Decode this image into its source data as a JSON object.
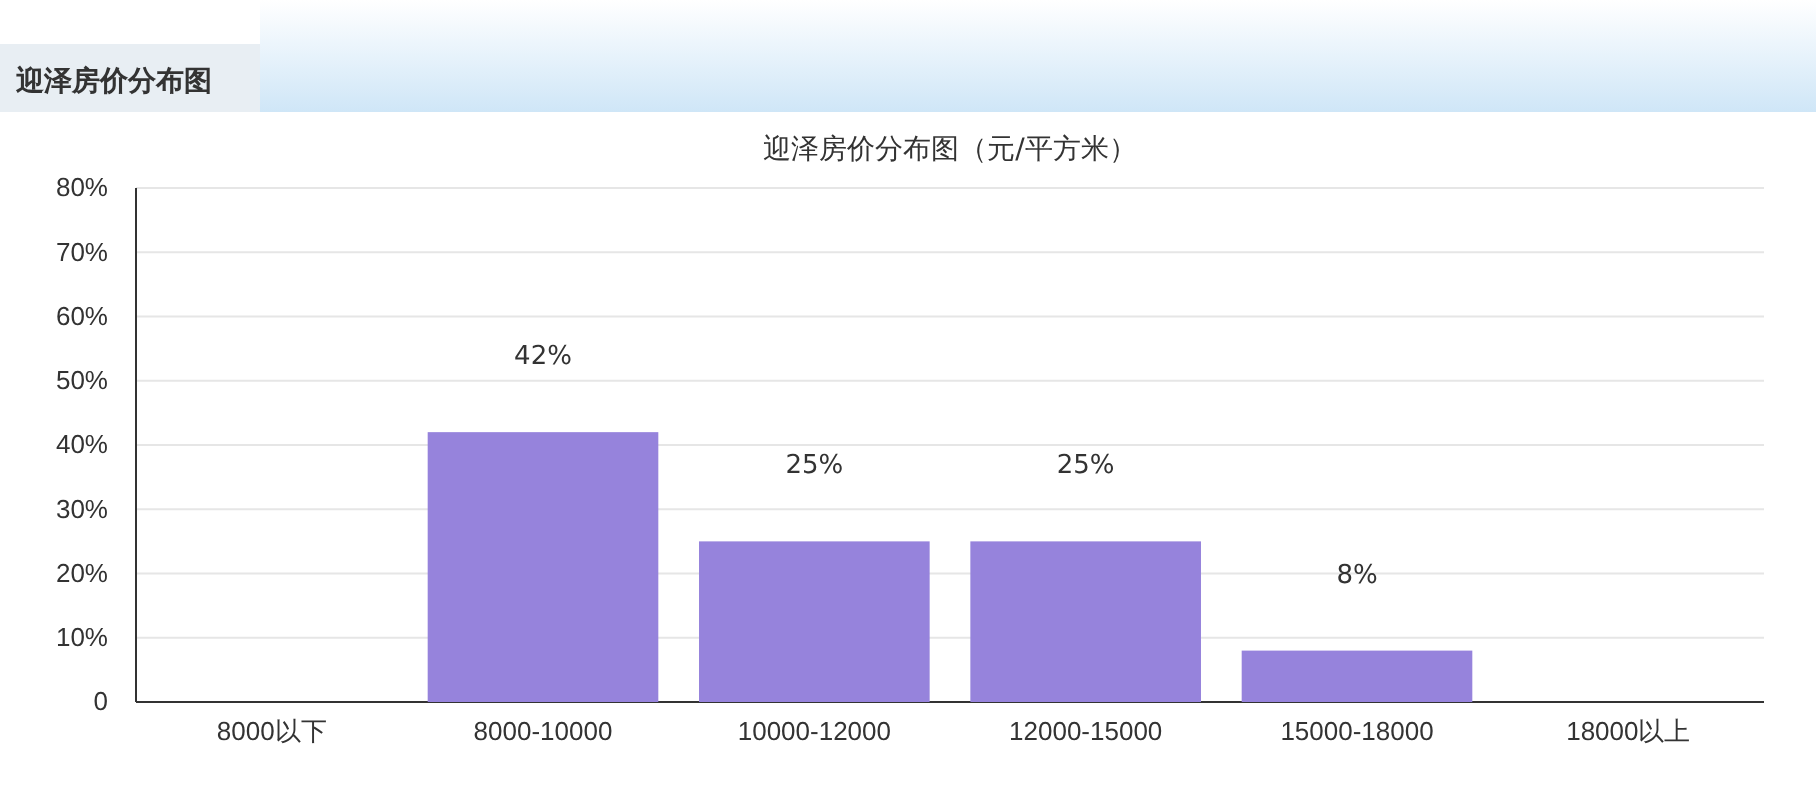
{
  "chart_data": {
    "type": "bar",
    "title": "迎泽房价分布图",
    "subtitle": "迎泽房价分布图（元/平方米）",
    "categories": [
      "8000以下",
      "8000-10000",
      "10000-12000",
      "12000-15000",
      "15000-18000",
      "18000以上"
    ],
    "values": [
      0,
      42,
      25,
      25,
      8,
      0
    ],
    "value_labels": [
      null,
      "42%",
      "25%",
      "25%",
      "8%",
      null
    ],
    "color": "#9683dc",
    "ylim": [
      0,
      80
    ],
    "yticks": [
      0,
      {
        "value": 10,
        "label": "10%"
      },
      {
        "value": 20,
        "label": "20%"
      },
      {
        "value": 30,
        "label": "30%"
      },
      {
        "value": 40,
        "label": "40%"
      },
      {
        "value": 50,
        "label": "50%"
      },
      {
        "value": 60,
        "label": "60%"
      },
      {
        "value": 70,
        "label": "70%"
      },
      {
        "value": 80,
        "label": "80%"
      }
    ],
    "grid": "y"
  }
}
